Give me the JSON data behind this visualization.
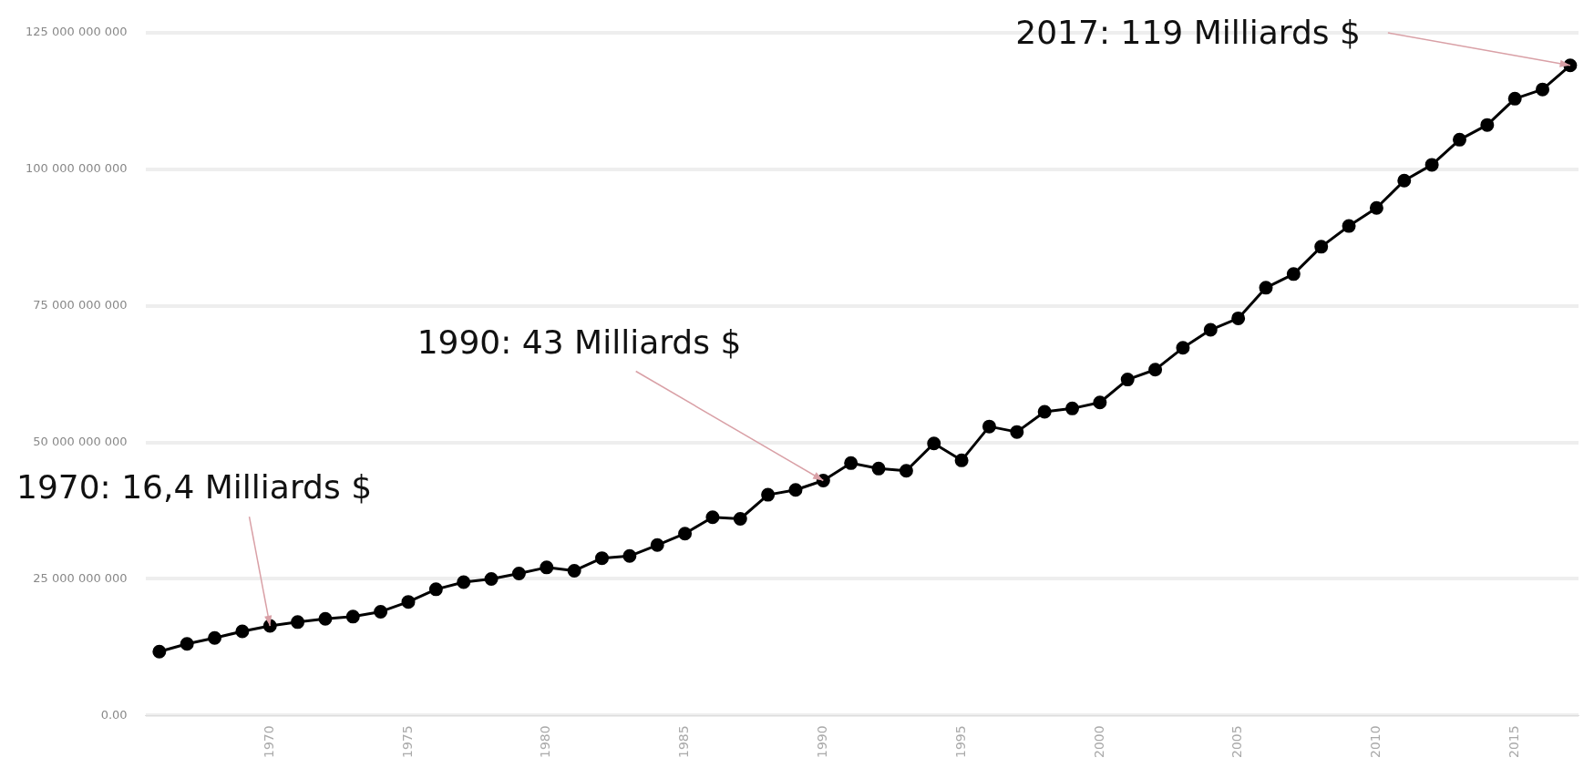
{
  "chart_data": {
    "type": "line",
    "x": [
      1966,
      1967,
      1968,
      1969,
      1970,
      1971,
      1972,
      1973,
      1974,
      1975,
      1976,
      1977,
      1978,
      1979,
      1980,
      1981,
      1982,
      1983,
      1984,
      1985,
      1986,
      1987,
      1988,
      1989,
      1990,
      1991,
      1992,
      1993,
      1994,
      1995,
      1996,
      1997,
      1998,
      1999,
      2000,
      2001,
      2002,
      2003,
      2004,
      2005,
      2006,
      2007,
      2008,
      2009,
      2010,
      2011,
      2012,
      2013,
      2014,
      2015,
      2016,
      2017
    ],
    "series": [
      {
        "color": "#000000",
        "values": [
          11700000000,
          13100000000,
          14200000000,
          15400000000,
          16400000000,
          17100000000,
          17700000000,
          18100000000,
          19000000000,
          20800000000,
          23100000000,
          24400000000,
          25000000000,
          26000000000,
          27100000000,
          26500000000,
          28800000000,
          29200000000,
          31200000000,
          33300000000,
          36300000000,
          36000000000,
          40400000000,
          41300000000,
          43000000000,
          46200000000,
          45200000000,
          44800000000,
          49800000000,
          46700000000,
          52900000000,
          51900000000,
          55600000000,
          56200000000,
          57300000000,
          61500000000,
          63300000000,
          67300000000,
          70600000000,
          72700000000,
          78300000000,
          80800000000,
          85800000000,
          89600000000,
          92900000000,
          97900000000,
          100800000000,
          105400000000,
          108100000000,
          112900000000,
          114600000000,
          119000000000
        ]
      }
    ],
    "xlim": [
      1965.5,
      2017.3
    ],
    "xticks": [
      1970,
      1975,
      1980,
      1985,
      1990,
      1995,
      2000,
      2005,
      2010,
      2015
    ],
    "ylim": [
      0,
      125000000000
    ],
    "yticks": [
      {
        "value": 0,
        "label": "0.00"
      },
      {
        "value": 25000000000,
        "label": "25 000 000 000"
      },
      {
        "value": 50000000000,
        "label": "50 000 000 000"
      },
      {
        "value": 75000000000,
        "label": "75 000 000 000"
      },
      {
        "value": 100000000000,
        "label": "100 000 000 000"
      },
      {
        "value": 125000000000,
        "label": "125 000 000 000"
      }
    ],
    "grid": "y",
    "marker": "circle",
    "line_style": "solid",
    "legend": false,
    "annotations": [
      {
        "text": "1970: 16,4 Milliards $",
        "x": 1970,
        "y": 16400000000
      },
      {
        "text": "1990: 43 Milliards $",
        "x": 1990,
        "y": 43000000000
      },
      {
        "text": "2017: 119 Milliards $",
        "x": 2017,
        "y": 119000000000
      }
    ]
  }
}
